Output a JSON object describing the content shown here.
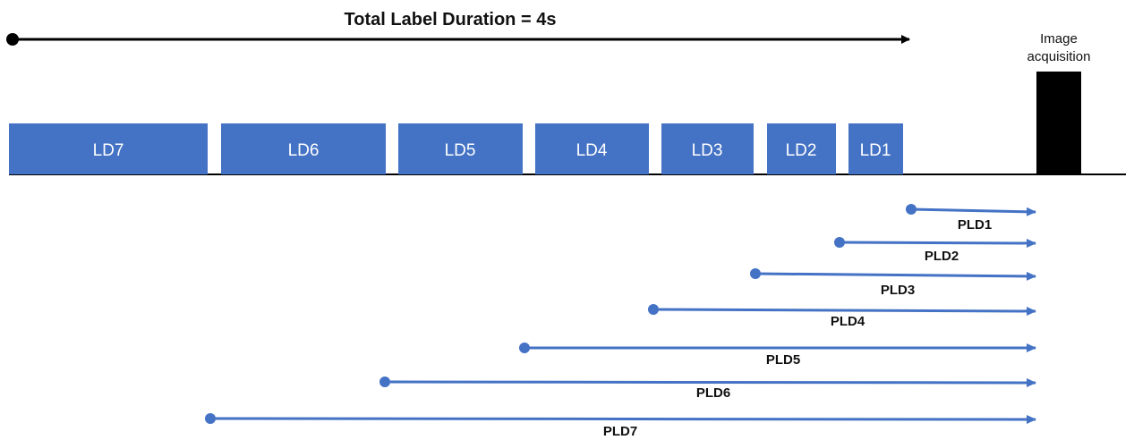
{
  "title": "Total Label Duration = 4s",
  "acquisition": {
    "line1": "Image",
    "line2": "acquisition",
    "color": "#000000"
  },
  "colors": {
    "block": "#4472c4",
    "arrow": "#4472c4",
    "timeline": "#000000"
  },
  "label_blocks": [
    "LD7",
    "LD6",
    "LD5",
    "LD4",
    "LD3",
    "LD2",
    "LD1"
  ],
  "post_label_delays": [
    "PLD1",
    "PLD2",
    "PLD3",
    "PLD4",
    "PLD5",
    "PLD6",
    "PLD7"
  ]
}
